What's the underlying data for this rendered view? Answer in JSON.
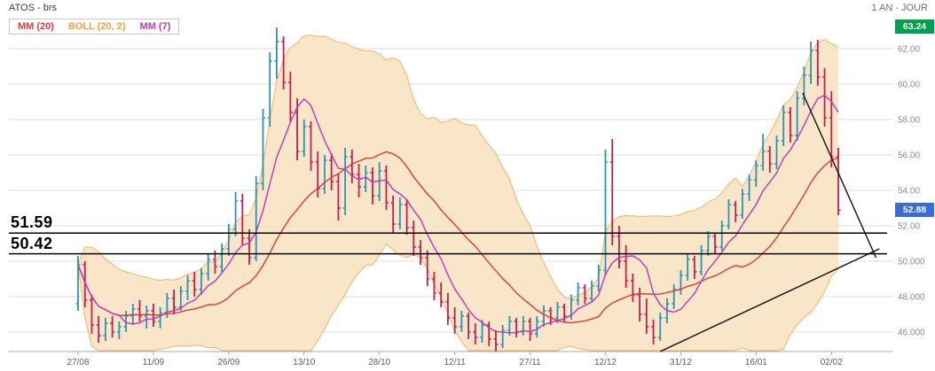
{
  "header": {
    "title": "ATOS - brs",
    "period": "1 AN - JOUR"
  },
  "legend": {
    "items": [
      {
        "label": "MM (20)",
        "color": "#d93a3a"
      },
      {
        "label": "BOLL (20, 2)",
        "color": "#efa03a"
      },
      {
        "label": "MM (7)",
        "color": "#bb35bb"
      }
    ]
  },
  "colors": {
    "up": "#2b93b5",
    "down": "#c0204f",
    "band_fill": "#f9e6c8",
    "band_stroke": "#f0b269",
    "mm20": "#d93a3a",
    "mm7": "#bb35bb",
    "grid": "#dedede",
    "axis_text": "#8a8a8a",
    "axis_line": "#a8a8a8",
    "trend": "#111111",
    "badge_high": "#00a14e",
    "badge_last": "#3a6bd8"
  },
  "chart_data": {
    "type": "candlestick",
    "title": "ATOS - brs",
    "period_label": "1 AN - JOUR",
    "price_axis_range": [
      44.9,
      63.75
    ],
    "y_ticks": [
      {
        "value": 62,
        "label": "62.00"
      },
      {
        "value": 60,
        "label": "60.00"
      },
      {
        "value": 58,
        "label": "58.00"
      },
      {
        "value": 56,
        "label": "56.00"
      },
      {
        "value": 54,
        "label": "54.00"
      },
      {
        "value": 52,
        "label": "52.00"
      },
      {
        "value": 50,
        "label": "50.000"
      },
      {
        "value": 48,
        "label": "48.000"
      },
      {
        "value": 46,
        "label": "46.000"
      }
    ],
    "x_tick_labels": [
      "27/08",
      "11/09",
      "26/09",
      "13/10",
      "28/10",
      "12/11",
      "27/11",
      "12/12",
      "31/12",
      "16/01",
      "02/02"
    ],
    "x_tick_every": 11,
    "overlays": [
      {
        "name": "MM (20)",
        "type": "sma",
        "window": 20
      },
      {
        "name": "BOLL (20, 2)",
        "type": "bollinger_band",
        "window": 20,
        "stddev": 2
      },
      {
        "name": "MM (7)",
        "type": "sma",
        "window": 7
      }
    ],
    "levels": [
      {
        "value": 51.59,
        "label": "51.59"
      },
      {
        "value": 50.42,
        "label": "50.42"
      }
    ],
    "badges": [
      {
        "value": 63.24,
        "label": "63.24",
        "type": "high"
      },
      {
        "value": 52.88,
        "label": "52.88",
        "type": "last"
      }
    ],
    "trendlines": [
      {
        "direction": "rising",
        "from_index": 85,
        "from_price": 44.9,
        "to_index": 117,
        "to_price": 50.7
      },
      {
        "direction": "falling",
        "from_index": 105.8,
        "from_price": 59.5,
        "to_index": 116.5,
        "to_price": 50.2
      }
    ],
    "candles": [
      [
        47.6,
        50.3,
        47.2,
        49.8
      ],
      [
        49.8,
        50.0,
        47.4,
        47.8
      ],
      [
        47.8,
        48.1,
        45.9,
        46.4
      ],
      [
        46.4,
        46.9,
        45.4,
        45.8
      ],
      [
        45.8,
        46.8,
        45.5,
        46.5
      ],
      [
        46.5,
        46.9,
        45.7,
        46.0
      ],
      [
        46.0,
        46.6,
        45.6,
        46.3
      ],
      [
        46.3,
        47.2,
        46.0,
        46.9
      ],
      [
        46.9,
        47.6,
        46.4,
        47.3
      ],
      [
        47.3,
        47.8,
        46.6,
        46.9
      ],
      [
        46.9,
        47.5,
        46.2,
        47.2
      ],
      [
        47.2,
        47.6,
        46.3,
        46.6
      ],
      [
        46.6,
        47.4,
        46.2,
        47.1
      ],
      [
        47.1,
        48.2,
        46.8,
        47.9
      ],
      [
        47.9,
        48.4,
        47.0,
        47.4
      ],
      [
        47.4,
        48.6,
        47.2,
        48.3
      ],
      [
        48.3,
        49.2,
        47.8,
        48.9
      ],
      [
        48.9,
        49.4,
        48.0,
        48.4
      ],
      [
        48.4,
        49.6,
        48.1,
        49.3
      ],
      [
        49.3,
        50.4,
        48.9,
        50.1
      ],
      [
        50.1,
        50.6,
        49.3,
        49.7
      ],
      [
        49.7,
        51.0,
        49.4,
        50.7
      ],
      [
        50.7,
        52.1,
        50.3,
        51.8
      ],
      [
        51.8,
        53.9,
        51.4,
        53.4
      ],
      [
        53.4,
        53.8,
        50.9,
        51.3
      ],
      [
        51.3,
        51.8,
        49.8,
        50.2
      ],
      [
        50.2,
        54.8,
        50.0,
        54.4
      ],
      [
        54.4,
        58.6,
        54.0,
        58.1
      ],
      [
        58.1,
        61.8,
        57.6,
        61.3
      ],
      [
        61.3,
        63.2,
        60.3,
        62.4
      ],
      [
        62.4,
        62.7,
        59.7,
        60.1
      ],
      [
        60.1,
        60.7,
        57.9,
        58.4
      ],
      [
        58.4,
        59.2,
        55.7,
        56.2
      ],
      [
        56.2,
        58.0,
        55.9,
        57.6
      ],
      [
        57.6,
        57.9,
        55.1,
        55.6
      ],
      [
        55.6,
        56.2,
        53.6,
        54.1
      ],
      [
        54.1,
        56.0,
        53.8,
        55.7
      ],
      [
        55.7,
        56.1,
        54.0,
        54.5
      ],
      [
        54.5,
        54.9,
        52.3,
        53.0
      ],
      [
        53.0,
        56.4,
        52.6,
        55.9
      ],
      [
        55.9,
        56.3,
        54.4,
        54.9
      ],
      [
        54.9,
        55.5,
        53.6,
        54.2
      ],
      [
        54.2,
        55.4,
        53.9,
        55.0
      ],
      [
        55.0,
        55.3,
        53.2,
        53.7
      ],
      [
        53.7,
        55.6,
        53.4,
        55.1
      ],
      [
        55.1,
        55.4,
        52.9,
        53.3
      ],
      [
        53.3,
        53.7,
        51.6,
        52.1
      ],
      [
        52.1,
        53.6,
        51.8,
        53.2
      ],
      [
        53.2,
        53.5,
        51.5,
        51.9
      ],
      [
        51.9,
        52.3,
        50.3,
        50.8
      ],
      [
        50.8,
        51.2,
        49.8,
        50.2
      ],
      [
        50.2,
        50.6,
        48.6,
        49.0
      ],
      [
        49.0,
        49.4,
        47.8,
        48.2
      ],
      [
        48.2,
        48.8,
        47.4,
        47.7
      ],
      [
        47.7,
        48.2,
        46.4,
        46.8
      ],
      [
        46.8,
        47.4,
        45.9,
        46.3
      ],
      [
        46.3,
        47.2,
        46.0,
        46.9
      ],
      [
        46.9,
        47.1,
        45.6,
        46.0
      ],
      [
        46.0,
        46.5,
        45.3,
        45.7
      ],
      [
        45.7,
        46.7,
        45.4,
        46.4
      ],
      [
        46.4,
        46.6,
        45.2,
        45.6
      ],
      [
        45.6,
        46.1,
        44.9,
        45.3
      ],
      [
        45.3,
        46.4,
        45.1,
        46.1
      ],
      [
        46.1,
        46.9,
        45.8,
        46.6
      ],
      [
        46.6,
        46.8,
        45.7,
        46.0
      ],
      [
        46.0,
        46.9,
        45.8,
        46.6
      ],
      [
        46.6,
        46.8,
        45.5,
        45.9
      ],
      [
        45.9,
        46.9,
        45.7,
        46.6
      ],
      [
        46.6,
        47.5,
        46.3,
        47.2
      ],
      [
        47.2,
        47.4,
        46.4,
        46.8
      ],
      [
        46.8,
        47.7,
        46.5,
        47.4
      ],
      [
        47.4,
        47.6,
        46.6,
        46.9
      ],
      [
        46.9,
        48.1,
        46.7,
        47.8
      ],
      [
        47.8,
        48.8,
        47.5,
        48.5
      ],
      [
        48.5,
        48.7,
        47.6,
        47.9
      ],
      [
        47.9,
        48.9,
        47.7,
        48.6
      ],
      [
        48.6,
        49.8,
        48.3,
        49.5
      ],
      [
        49.5,
        56.3,
        49.2,
        55.6
      ],
      [
        55.6,
        56.9,
        50.9,
        51.4
      ],
      [
        51.4,
        52.0,
        49.6,
        50.0
      ],
      [
        50.0,
        50.9,
        48.5,
        48.9
      ],
      [
        48.9,
        49.3,
        47.7,
        48.1
      ],
      [
        48.1,
        48.5,
        46.6,
        47.0
      ],
      [
        47.0,
        47.9,
        45.9,
        46.3
      ],
      [
        46.3,
        46.7,
        45.3,
        45.7
      ],
      [
        45.7,
        47.1,
        45.5,
        46.8
      ],
      [
        46.8,
        47.9,
        46.5,
        47.6
      ],
      [
        47.6,
        48.7,
        47.3,
        48.4
      ],
      [
        48.4,
        49.5,
        48.1,
        49.2
      ],
      [
        49.2,
        50.4,
        48.9,
        50.1
      ],
      [
        50.1,
        50.3,
        49.0,
        49.4
      ],
      [
        49.4,
        50.9,
        49.2,
        50.6
      ],
      [
        50.6,
        51.7,
        50.3,
        51.4
      ],
      [
        51.4,
        51.6,
        50.4,
        50.8
      ],
      [
        50.8,
        52.3,
        50.6,
        52.0
      ],
      [
        52.0,
        53.5,
        51.8,
        53.2
      ],
      [
        53.2,
        53.4,
        52.2,
        52.6
      ],
      [
        52.6,
        54.1,
        52.4,
        53.8
      ],
      [
        53.8,
        54.9,
        53.4,
        54.6
      ],
      [
        54.6,
        55.7,
        54.2,
        55.4
      ],
      [
        55.4,
        57.2,
        55.1,
        56.2
      ],
      [
        56.2,
        56.5,
        55.0,
        55.5
      ],
      [
        55.5,
        57.1,
        55.2,
        56.8
      ],
      [
        56.8,
        58.8,
        56.5,
        58.4
      ],
      [
        58.4,
        58.7,
        56.7,
        57.1
      ],
      [
        57.1,
        59.6,
        56.8,
        59.2
      ],
      [
        59.2,
        61.0,
        58.8,
        60.5
      ],
      [
        60.5,
        62.4,
        60.0,
        61.9
      ],
      [
        61.9,
        62.5,
        59.9,
        60.4
      ],
      [
        60.4,
        60.9,
        57.6,
        58.1
      ],
      [
        58.1,
        59.6,
        55.3,
        55.9
      ],
      [
        55.9,
        56.4,
        52.6,
        52.88
      ]
    ]
  }
}
